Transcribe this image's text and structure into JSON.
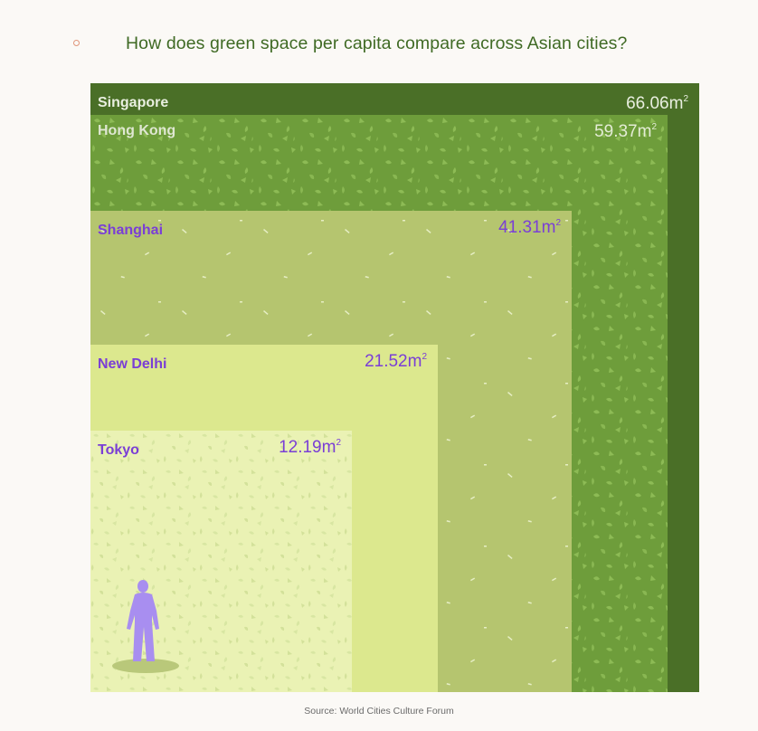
{
  "title": "How does green space per capita compare across Asian cities?",
  "source": "Source: World Cities Culture Forum",
  "unit_superscript": "2",
  "chart_data": {
    "type": "nested-squares",
    "title": "How does green space per capita compare across Asian cities?",
    "unit": "m²",
    "categories": [
      "Singapore",
      "Hong Kong",
      "Shanghai",
      "New Delhi",
      "Tokyo"
    ],
    "values": [
      66.06,
      59.37,
      41.31,
      21.52,
      12.19
    ],
    "labels": [
      "66.06m",
      "59.37m",
      "41.31m",
      "21.52m",
      "12.19m"
    ],
    "colors": [
      "#4a6f27",
      "#6e9d3b",
      "#b5c56f",
      "#dce88e",
      "#eaf2b4"
    ],
    "city_colors": [
      "#e9efe0",
      "#dfe7d2",
      "#7a3ed6",
      "#7a3ed6",
      "#7a3ed6"
    ],
    "value_colors": [
      "#e9efe0",
      "#e4ecd6",
      "#7a3ed6",
      "#7a3ed6",
      "#7a3ed6"
    ],
    "textures": [
      "none",
      "leaf-dark",
      "speck",
      "none",
      "leaf-light"
    ]
  }
}
